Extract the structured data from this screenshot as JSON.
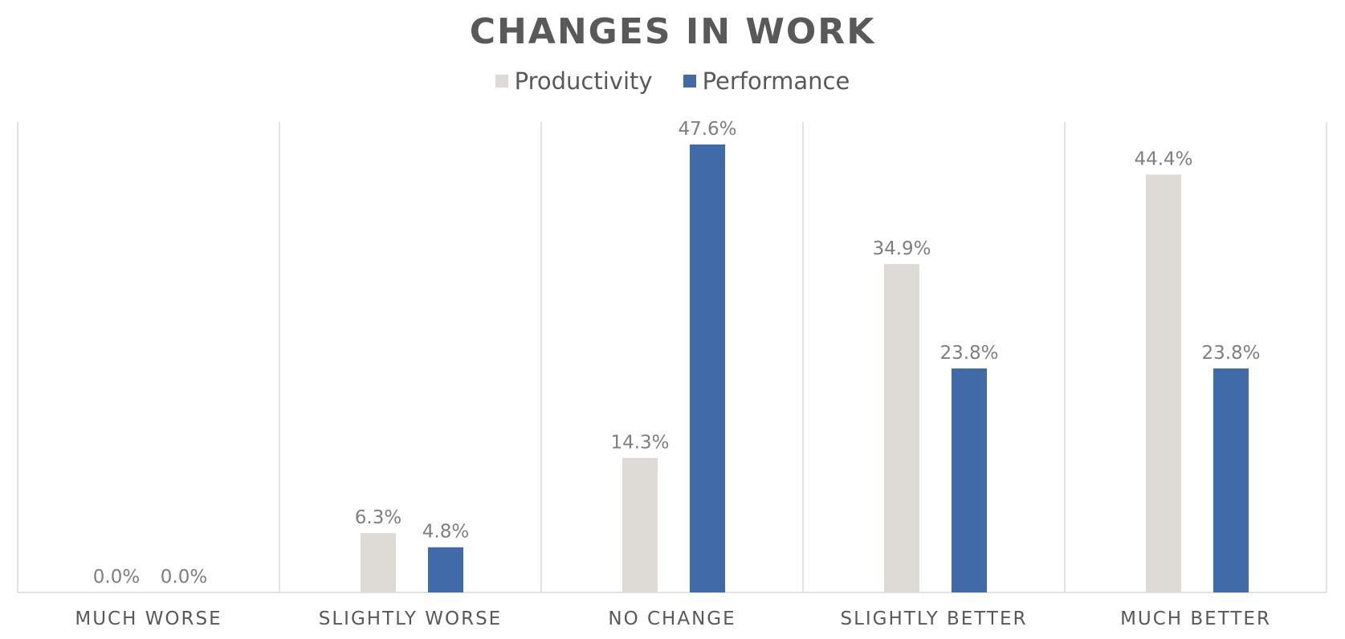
{
  "chart_data": {
    "type": "bar",
    "title": "CHANGES IN WORK",
    "categories": [
      "MUCH WORSE",
      "SLIGHTLY WORSE",
      "NO CHANGE",
      "SLIGHTLY BETTER",
      "MUCH BETTER"
    ],
    "series": [
      {
        "name": "Productivity",
        "values": [
          0.0,
          6.3,
          14.3,
          34.9,
          44.4
        ],
        "color": "#DEDBD7"
      },
      {
        "name": "Performance",
        "values": [
          0.0,
          4.8,
          47.6,
          23.8,
          23.8
        ],
        "color": "#416BA8"
      }
    ],
    "data_labels": [
      [
        "0.0%",
        "6.3%",
        "14.3%",
        "34.9%",
        "44.4%"
      ],
      [
        "0.0%",
        "4.8%",
        "47.6%",
        "23.8%",
        "23.8%"
      ]
    ],
    "ylim": [
      0,
      50
    ],
    "grid": "vertical category dividers",
    "legend_position": "top-center",
    "label_color": "#7F7F7F",
    "axis_label_color": "#595959"
  }
}
